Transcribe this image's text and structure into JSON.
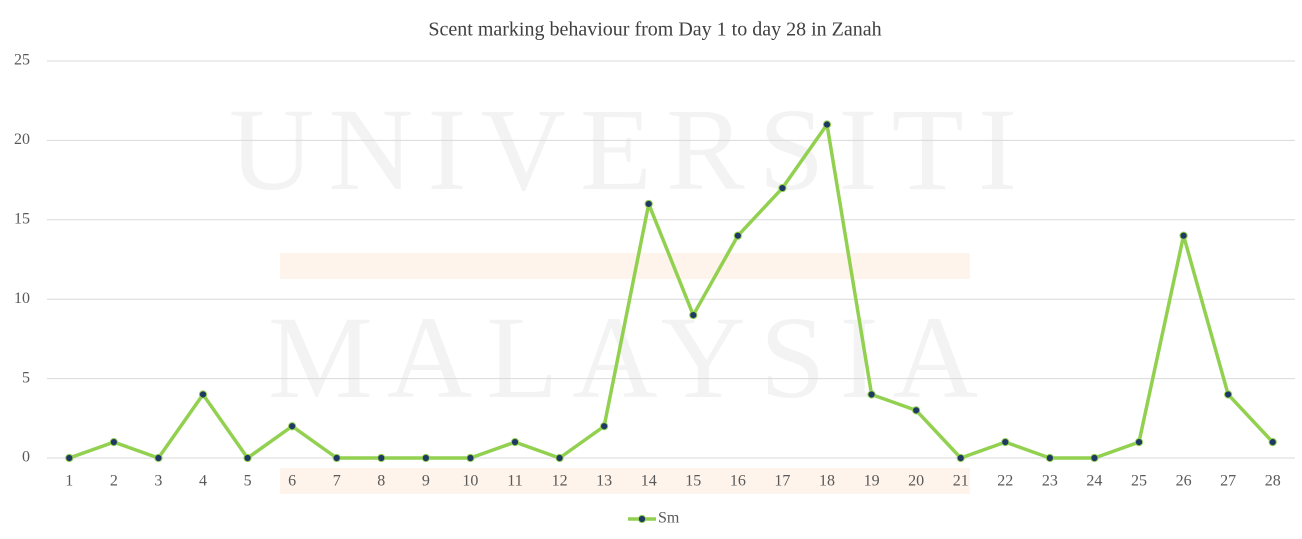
{
  "chart_data": {
    "type": "line",
    "title": "Scent marking behaviour from Day 1 to day 28 in Zanah",
    "watermark": [
      "UNIVERSITI",
      "MALAYSIA"
    ],
    "categories": [
      "1",
      "2",
      "3",
      "4",
      "5",
      "6",
      "7",
      "8",
      "9",
      "10",
      "11",
      "12",
      "13",
      "14",
      "15",
      "16",
      "17",
      "18",
      "19",
      "20",
      "21",
      "22",
      "23",
      "24",
      "25",
      "26",
      "27",
      "28"
    ],
    "series": [
      {
        "name": "Sm",
        "color": "#92d050",
        "marker_color": "#1f3864",
        "values": [
          0,
          1,
          0,
          4,
          0,
          2,
          0,
          0,
          0,
          0,
          1,
          0,
          2,
          16,
          9,
          14,
          17,
          21,
          4,
          3,
          0,
          1,
          0,
          0,
          1,
          14,
          4,
          1
        ]
      }
    ],
    "ylim": [
      0,
      25
    ],
    "yticks": [
      0,
      5,
      10,
      15,
      20,
      25
    ],
    "grid": true,
    "legend": "bottom"
  }
}
